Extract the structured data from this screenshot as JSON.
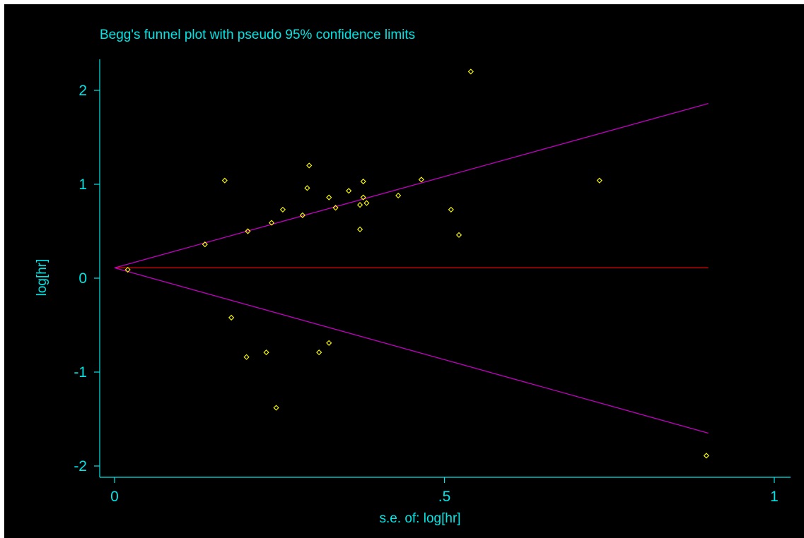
{
  "chart_data": {
    "type": "scatter",
    "title": "Begg's funnel plot with pseudo 95% confidence limits",
    "xlabel": "s.e. of: log[hr]",
    "ylabel": "log[hr]",
    "xlim": [
      0,
      1
    ],
    "ylim": [
      -2,
      2
    ],
    "x_ticks": [
      "0",
      ".5",
      "1"
    ],
    "y_ticks": [
      "2",
      "1",
      "0",
      "-1",
      "-2"
    ],
    "grid": false,
    "legend": "none",
    "pooled_estimate": 0.11,
    "confidence_limits": {
      "se_max": 0.9,
      "upper_end": 1.86,
      "lower_end": -1.65
    },
    "points": [
      {
        "x": 0.02,
        "y": 0.09
      },
      {
        "x": 0.137,
        "y": 0.36
      },
      {
        "x": 0.167,
        "y": 1.04
      },
      {
        "x": 0.177,
        "y": -0.42
      },
      {
        "x": 0.202,
        "y": 0.5
      },
      {
        "x": 0.2,
        "y": -0.84
      },
      {
        "x": 0.23,
        "y": -0.79
      },
      {
        "x": 0.238,
        "y": 0.59
      },
      {
        "x": 0.245,
        "y": -1.38
      },
      {
        "x": 0.255,
        "y": 0.73
      },
      {
        "x": 0.285,
        "y": 0.67
      },
      {
        "x": 0.292,
        "y": 0.96
      },
      {
        "x": 0.295,
        "y": 1.2
      },
      {
        "x": 0.31,
        "y": -0.79
      },
      {
        "x": 0.325,
        "y": 0.86
      },
      {
        "x": 0.325,
        "y": -0.69
      },
      {
        "x": 0.335,
        "y": 0.75
      },
      {
        "x": 0.355,
        "y": 0.93
      },
      {
        "x": 0.372,
        "y": 0.52
      },
      {
        "x": 0.372,
        "y": 0.78
      },
      {
        "x": 0.377,
        "y": 1.03
      },
      {
        "x": 0.377,
        "y": 0.86
      },
      {
        "x": 0.382,
        "y": 0.8
      },
      {
        "x": 0.43,
        "y": 0.88
      },
      {
        "x": 0.465,
        "y": 1.05
      },
      {
        "x": 0.51,
        "y": 0.73
      },
      {
        "x": 0.522,
        "y": 0.46
      },
      {
        "x": 0.54,
        "y": 2.2
      },
      {
        "x": 0.735,
        "y": 1.04
      },
      {
        "x": 0.897,
        "y": -1.89
      }
    ],
    "colors": {
      "background": "#000000",
      "text": "#00e5e5",
      "axis": "#00e5e5",
      "points": "#ffff00",
      "pooled_line": "#e00000",
      "limit_lines": "#c000c0"
    }
  }
}
